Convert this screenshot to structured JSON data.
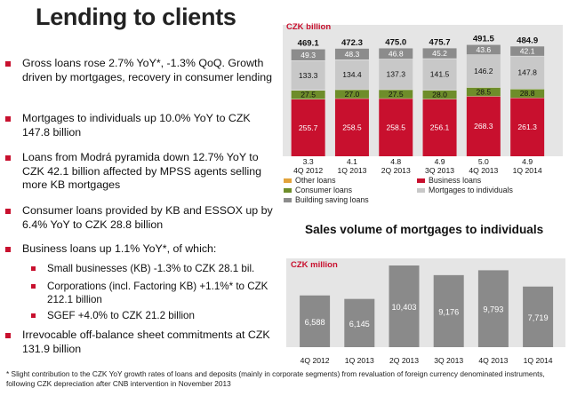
{
  "page": {
    "title": "Lending to clients"
  },
  "bullets": [
    {
      "text": "Gross loans rose 2.7% YoY*, -1.3% QoQ. Growth driven by mortgages, recovery in consumer lending",
      "level": 1
    },
    {
      "text": "Mortgages to individuals up 10.0% YoY to CZK 147.8 billion",
      "level": 1
    },
    {
      "text": "Loans from Modrá pyramida down 12.7% YoY to CZK 42.1 billion affected by MPSS agents selling more KB mortgages",
      "level": 1
    },
    {
      "text": "Consumer loans provided by KB and ESSOX up by 6.4% YoY to CZK 28.8 billion",
      "level": 1
    },
    {
      "text": "Business loans up 1.1% YoY*, of which:",
      "level": 1
    },
    {
      "text": "Small businesses (KB) -1.3% to CZK 28.1 bil.",
      "level": 2
    },
    {
      "text": "Corporations (incl. Factoring KB) +1.1%* to CZK 212.1 billion",
      "level": 2
    },
    {
      "text": "SGEF +4.0% to CZK 21.2 billion",
      "level": 2
    },
    {
      "text": "Irrevocable off-balance sheet commitments at CZK 131.9 billion",
      "level": 1
    }
  ],
  "footnote": "* Slight contribution to the CZK YoY growth rates of loans and deposits  (mainly in corporate segments) from revaluation of foreign currency denominated instruments, following  CZK depreciation  after CNB intervention in November  2013",
  "colors": {
    "accent": "#c8102e",
    "other_loans": "#e2a33b",
    "business_loans": "#c8102e",
    "consumer_loans": "#6e8d2a",
    "mortgages": "#c8c8c8",
    "building_saving": "#8c8c8c",
    "sales_bars": "#8a8a8a",
    "plot_bg": "#e5e5e5"
  },
  "chart_data": [
    {
      "type": "bar",
      "stacked": true,
      "unit_label": "CZK billion",
      "categories": [
        "4Q 2012",
        "1Q 2013",
        "2Q 2013",
        "3Q 2013",
        "4Q 2013",
        "1Q 2014"
      ],
      "totals": [
        "469.1",
        "472.3",
        "475.0",
        "475.7",
        "491.5",
        "484.9"
      ],
      "series": [
        {
          "name": "Other loans",
          "key": "other",
          "values": [
            3.3,
            4.1,
            4.8,
            4.9,
            5.0,
            4.9
          ],
          "labels": [
            "3.3",
            "4.1",
            "4.8",
            "4.9",
            "5.0",
            "4.9"
          ]
        },
        {
          "name": "Business loans",
          "key": "business",
          "values": [
            255.7,
            258.5,
            258.5,
            256.1,
            268.3,
            261.3
          ],
          "labels": [
            "255.7",
            "258.5",
            "258.5",
            "256.1",
            "268.3",
            "261.3"
          ]
        },
        {
          "name": "Consumer loans",
          "key": "consumer",
          "values": [
            27.5,
            27.0,
            27.5,
            28.0,
            28.5,
            28.8
          ],
          "labels": [
            "27.5",
            "27.0",
            "27.5",
            "28.0",
            "28.5",
            "28.8"
          ]
        },
        {
          "name": "Mortgages to individuals",
          "key": "mortgages",
          "values": [
            133.3,
            134.4,
            137.3,
            141.5,
            146.2,
            147.8
          ],
          "labels": [
            "133.3",
            "134.4",
            "137.3",
            "141.5",
            "146.2",
            "147.8"
          ]
        },
        {
          "name": "Building saving loans",
          "key": "building",
          "values": [
            49.3,
            48.3,
            46.8,
            45.2,
            43.6,
            42.1
          ],
          "labels": [
            "49.3",
            "48.3",
            "46.8",
            "45.2",
            "43.6",
            "42.1"
          ]
        }
      ],
      "ylim": [
        0,
        500
      ],
      "legend_position": "bottom"
    },
    {
      "type": "bar",
      "title": "Sales volume of mortgages to individuals",
      "unit_label": "CZK million",
      "categories": [
        "4Q 2012",
        "1Q 2013",
        "2Q 2013",
        "3Q 2013",
        "4Q 2013",
        "1Q 2014"
      ],
      "values": [
        6588,
        6145,
        10403,
        9176,
        9793,
        7719
      ],
      "labels": [
        "6,588",
        "6,145",
        "10,403",
        "9,176",
        "9,793",
        "7,719"
      ],
      "ylim": [
        0,
        10403
      ]
    }
  ]
}
